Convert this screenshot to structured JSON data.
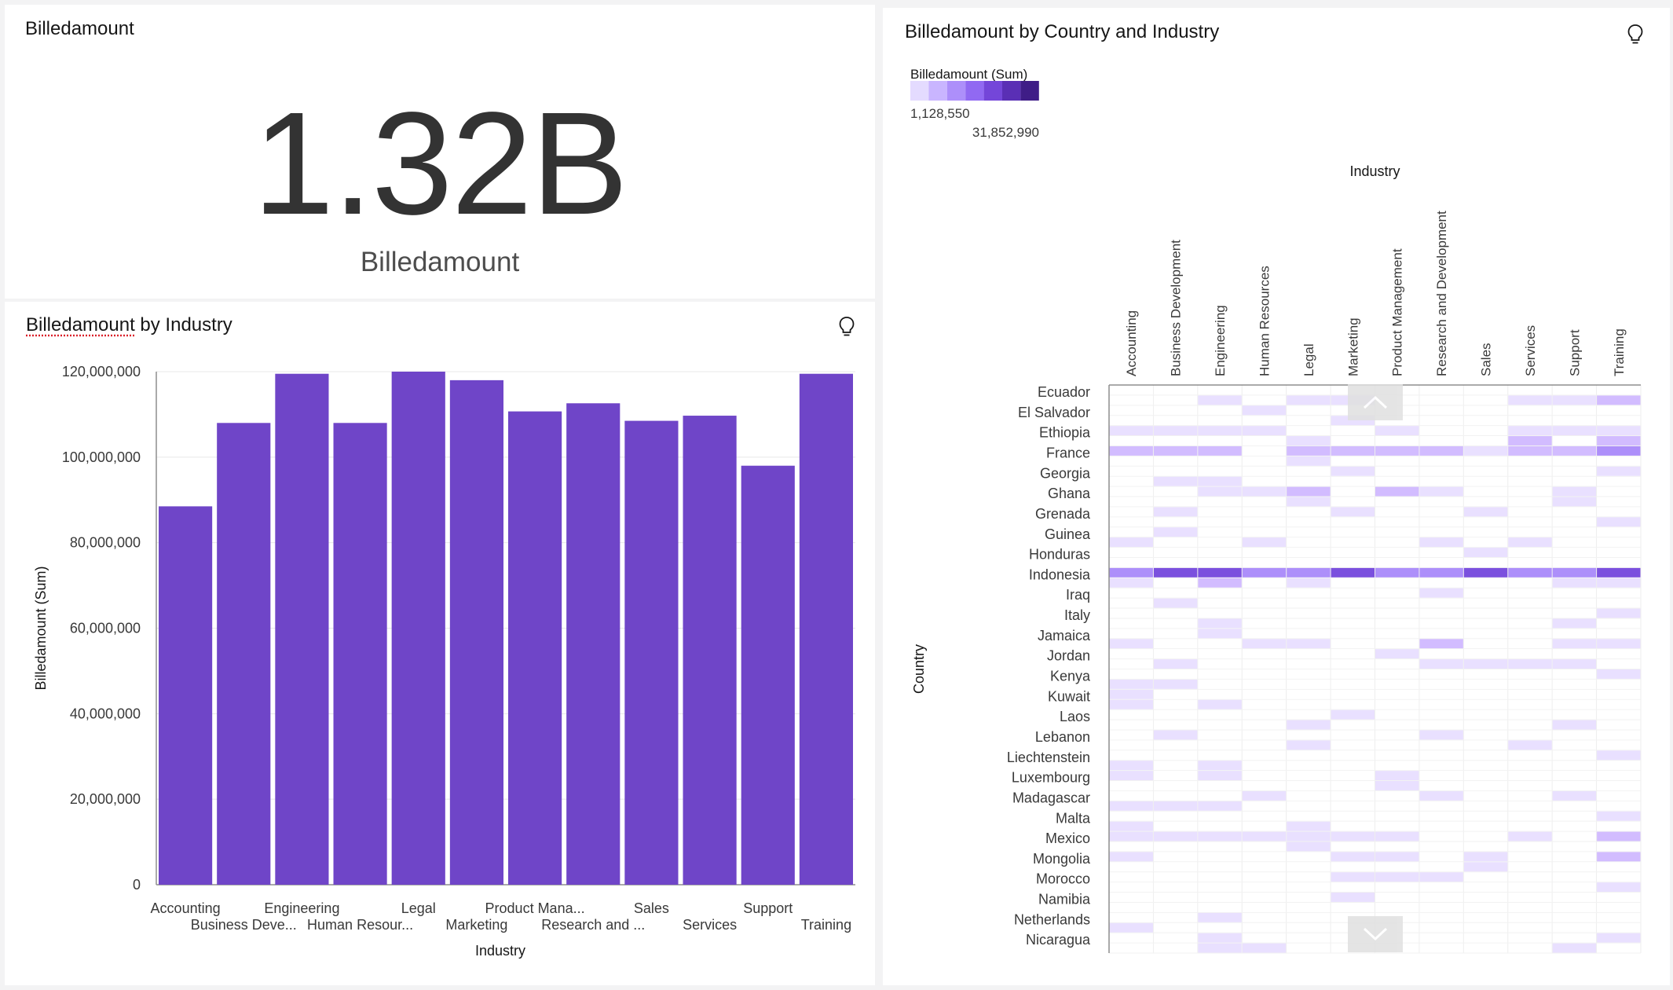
{
  "kpi": {
    "title": "Billedamount",
    "value": "1.32B",
    "label": "Billedamount"
  },
  "bar_panel": {
    "title_part1": "Billedamount",
    "title_part2": " by Industry"
  },
  "heat_panel": {
    "title": "Billedamount by Country and Industry",
    "legend_title": "Billedamount (Sum)",
    "legend_min": "1,128,550",
    "legend_max": "31,852,990",
    "legend_colors": [
      "#e4dbff",
      "#c9b5ff",
      "#ad8ffa",
      "#9169f2",
      "#7446d9",
      "#5a2fb5",
      "#3f1d87"
    ]
  },
  "icons": {
    "insight": "lightbulb-icon",
    "scroll_up": "chevron-up-icon",
    "scroll_down": "chevron-down-icon"
  },
  "chart_data": [
    {
      "type": "bar",
      "title": "",
      "xlabel": "Industry",
      "ylabel": "Billedamount (Sum)",
      "ylim": [
        0,
        120000000
      ],
      "yticks": [
        "0",
        "20,000,000",
        "40,000,000",
        "60,000,000",
        "80,000,000",
        "100,000,000",
        "120,000,000"
      ],
      "categories": [
        "Accounting",
        "Business Development",
        "Engineering",
        "Human Resources",
        "Legal",
        "Marketing",
        "Product Management",
        "Research and Development",
        "Sales",
        "Services",
        "Support",
        "Training"
      ],
      "tick_labels": [
        "Accounting",
        "Business Deve...",
        "Engineering",
        "Human Resour...",
        "Legal",
        "Marketing",
        "Product Mana...",
        "Research and ...",
        "Sales",
        "Services",
        "Support",
        "Training"
      ],
      "values": [
        88500000,
        108000000,
        119500000,
        108000000,
        120000000,
        118000000,
        110700000,
        112600000,
        108500000,
        109700000,
        98000000,
        119500000
      ],
      "color": "#6f45c8",
      "grid": true
    },
    {
      "type": "heatmap",
      "title": "Billedamount by Country and Industry",
      "xlabel": "Industry",
      "ylabel": "Country",
      "columns": [
        "Accounting",
        "Business Development",
        "Engineering",
        "Human Resources",
        "Legal",
        "Marketing",
        "Product Management",
        "Research and Development",
        "Sales",
        "Services",
        "Support",
        "Training"
      ],
      "rows": [
        "Ecuador",
        "El Salvador",
        "Ethiopia",
        "France",
        "Georgia",
        "Ghana",
        "Grenada",
        "Guinea",
        "Honduras",
        "Indonesia",
        "Iraq",
        "Italy",
        "Jamaica",
        "Jordan",
        "Kenya",
        "Kuwait",
        "Laos",
        "Lebanon",
        "Liechtenstein",
        "Luxembourg",
        "Madagascar",
        "Malta",
        "Mexico",
        "Mongolia",
        "Morocco",
        "Namibia",
        "Netherlands",
        "Nicaragua"
      ],
      "scale_min": 1128550,
      "scale_max": 31852990,
      "row_bands": [
        {
          "country": "Ecuador",
          "bands": [
            [
              0,
              0,
              0,
              0,
              0,
              0,
              0,
              0,
              0,
              0,
              0,
              0
            ],
            [
              0,
              0,
              1,
              0,
              1,
              1,
              0,
              0,
              0,
              1,
              1,
              2
            ]
          ]
        },
        {
          "country": "El Salvador",
          "bands": [
            [
              0,
              0,
              0,
              1,
              0,
              0,
              0,
              0,
              0,
              0,
              0,
              0
            ],
            [
              0,
              0,
              0,
              0,
              0,
              1,
              0,
              0,
              0,
              0,
              0,
              0
            ]
          ]
        },
        {
          "country": "Ethiopia",
          "bands": [
            [
              1,
              1,
              1,
              1,
              0,
              0,
              1,
              0,
              0,
              1,
              1,
              1
            ],
            [
              0,
              0,
              0,
              0,
              1,
              0,
              0,
              0,
              0,
              2,
              0,
              2
            ]
          ]
        },
        {
          "country": "France",
          "bands": [
            [
              2,
              2,
              2,
              0,
              2,
              2,
              2,
              2,
              1,
              2,
              2,
              3
            ],
            [
              0,
              0,
              0,
              0,
              1,
              0,
              0,
              0,
              0,
              0,
              0,
              0
            ]
          ]
        },
        {
          "country": "Georgia",
          "bands": [
            [
              0,
              0,
              0,
              0,
              0,
              1,
              0,
              0,
              0,
              0,
              0,
              1
            ],
            [
              0,
              1,
              1,
              0,
              0,
              0,
              0,
              0,
              0,
              0,
              0,
              0
            ]
          ]
        },
        {
          "country": "Ghana",
          "bands": [
            [
              0,
              0,
              1,
              1,
              2,
              0,
              2,
              1,
              0,
              0,
              1,
              0
            ],
            [
              0,
              0,
              0,
              0,
              1,
              0,
              0,
              0,
              0,
              0,
              1,
              0
            ]
          ]
        },
        {
          "country": "Grenada",
          "bands": [
            [
              0,
              1,
              0,
              0,
              0,
              1,
              0,
              0,
              1,
              0,
              0,
              0
            ],
            [
              0,
              0,
              0,
              0,
              0,
              0,
              0,
              0,
              0,
              0,
              0,
              1
            ]
          ]
        },
        {
          "country": "Guinea",
          "bands": [
            [
              0,
              1,
              0,
              0,
              0,
              0,
              0,
              0,
              0,
              0,
              0,
              0
            ],
            [
              1,
              0,
              0,
              1,
              0,
              0,
              0,
              1,
              0,
              1,
              0,
              0
            ]
          ]
        },
        {
          "country": "Honduras",
          "bands": [
            [
              0,
              0,
              0,
              0,
              0,
              0,
              0,
              0,
              1,
              0,
              0,
              0
            ],
            [
              0,
              0,
              0,
              0,
              0,
              0,
              0,
              0,
              0,
              0,
              0,
              0
            ]
          ]
        },
        {
          "country": "Indonesia",
          "bands": [
            [
              3,
              4,
              4,
              3,
              3,
              4,
              3,
              3,
              4,
              3,
              3,
              4
            ],
            [
              1,
              0,
              2,
              0,
              1,
              0,
              0,
              0,
              0,
              0,
              1,
              1
            ]
          ]
        },
        {
          "country": "Iraq",
          "bands": [
            [
              0,
              0,
              0,
              0,
              0,
              0,
              0,
              1,
              0,
              0,
              0,
              0
            ],
            [
              0,
              1,
              0,
              0,
              0,
              0,
              0,
              0,
              0,
              0,
              0,
              0
            ]
          ]
        },
        {
          "country": "Italy",
          "bands": [
            [
              0,
              0,
              0,
              0,
              0,
              0,
              0,
              0,
              0,
              0,
              0,
              1
            ],
            [
              0,
              0,
              1,
              0,
              0,
              0,
              0,
              0,
              0,
              0,
              1,
              0
            ]
          ]
        },
        {
          "country": "Jamaica",
          "bands": [
            [
              0,
              0,
              1,
              0,
              0,
              0,
              0,
              0,
              0,
              0,
              0,
              0
            ],
            [
              1,
              0,
              0,
              1,
              1,
              0,
              0,
              2,
              0,
              0,
              1,
              1
            ]
          ]
        },
        {
          "country": "Jordan",
          "bands": [
            [
              0,
              0,
              0,
              0,
              0,
              0,
              1,
              0,
              0,
              0,
              0,
              0
            ],
            [
              0,
              1,
              0,
              0,
              0,
              0,
              0,
              1,
              1,
              1,
              1,
              0
            ]
          ]
        },
        {
          "country": "Kenya",
          "bands": [
            [
              0,
              0,
              0,
              0,
              0,
              0,
              0,
              0,
              0,
              0,
              0,
              1
            ],
            [
              1,
              1,
              0,
              0,
              0,
              0,
              0,
              0,
              0,
              0,
              0,
              0
            ]
          ]
        },
        {
          "country": "Kuwait",
          "bands": [
            [
              1,
              0,
              0,
              0,
              0,
              0,
              0,
              0,
              0,
              0,
              0,
              0
            ],
            [
              1,
              0,
              1,
              0,
              0,
              0,
              0,
              0,
              0,
              0,
              0,
              0
            ]
          ]
        },
        {
          "country": "Laos",
          "bands": [
            [
              0,
              0,
              0,
              0,
              0,
              1,
              0,
              0,
              0,
              0,
              0,
              0
            ],
            [
              0,
              0,
              0,
              0,
              1,
              0,
              0,
              0,
              0,
              0,
              1,
              0
            ]
          ]
        },
        {
          "country": "Lebanon",
          "bands": [
            [
              0,
              1,
              0,
              0,
              0,
              0,
              0,
              1,
              0,
              0,
              0,
              0
            ],
            [
              0,
              0,
              0,
              0,
              1,
              0,
              0,
              0,
              0,
              1,
              0,
              0
            ]
          ]
        },
        {
          "country": "Liechtenstein",
          "bands": [
            [
              0,
              0,
              0,
              0,
              0,
              0,
              0,
              0,
              0,
              0,
              0,
              1
            ],
            [
              1,
              0,
              1,
              0,
              0,
              0,
              0,
              0,
              0,
              0,
              0,
              0
            ]
          ]
        },
        {
          "country": "Luxembourg",
          "bands": [
            [
              1,
              0,
              1,
              0,
              0,
              0,
              1,
              0,
              0,
              0,
              0,
              0
            ],
            [
              0,
              0,
              0,
              0,
              0,
              0,
              1,
              0,
              0,
              0,
              0,
              0
            ]
          ]
        },
        {
          "country": "Madagascar",
          "bands": [
            [
              0,
              0,
              0,
              1,
              0,
              0,
              0,
              1,
              0,
              0,
              1,
              0
            ],
            [
              1,
              1,
              1,
              0,
              0,
              0,
              0,
              0,
              0,
              0,
              0,
              0
            ]
          ]
        },
        {
          "country": "Malta",
          "bands": [
            [
              0,
              0,
              0,
              0,
              0,
              0,
              0,
              0,
              0,
              0,
              0,
              1
            ],
            [
              1,
              0,
              0,
              0,
              1,
              0,
              0,
              0,
              0,
              0,
              0,
              0
            ]
          ]
        },
        {
          "country": "Mexico",
          "bands": [
            [
              1,
              1,
              1,
              1,
              1,
              1,
              1,
              0,
              0,
              1,
              0,
              2
            ],
            [
              0,
              0,
              0,
              0,
              1,
              0,
              0,
              0,
              0,
              0,
              0,
              0
            ]
          ]
        },
        {
          "country": "Mongolia",
          "bands": [
            [
              1,
              0,
              0,
              0,
              0,
              1,
              1,
              0,
              1,
              0,
              0,
              2
            ],
            [
              0,
              0,
              0,
              0,
              0,
              0,
              0,
              0,
              1,
              0,
              0,
              0
            ]
          ]
        },
        {
          "country": "Morocco",
          "bands": [
            [
              0,
              0,
              0,
              0,
              0,
              1,
              1,
              1,
              0,
              0,
              0,
              0
            ],
            [
              0,
              0,
              0,
              0,
              0,
              0,
              0,
              0,
              0,
              0,
              0,
              1
            ]
          ]
        },
        {
          "country": "Namibia",
          "bands": [
            [
              0,
              0,
              0,
              0,
              0,
              1,
              0,
              0,
              0,
              0,
              0,
              0
            ],
            [
              0,
              0,
              0,
              0,
              0,
              0,
              0,
              0,
              0,
              0,
              0,
              0
            ]
          ]
        },
        {
          "country": "Netherlands",
          "bands": [
            [
              0,
              0,
              1,
              0,
              0,
              0,
              0,
              0,
              0,
              0,
              0,
              0
            ],
            [
              1,
              0,
              0,
              0,
              0,
              0,
              0,
              0,
              0,
              0,
              0,
              0
            ]
          ]
        },
        {
          "country": "Nicaragua",
          "bands": [
            [
              0,
              0,
              1,
              0,
              0,
              0,
              0,
              0,
              0,
              0,
              0,
              1
            ],
            [
              0,
              0,
              1,
              1,
              0,
              0,
              0,
              0,
              0,
              0,
              1,
              0
            ]
          ]
        }
      ]
    }
  ]
}
